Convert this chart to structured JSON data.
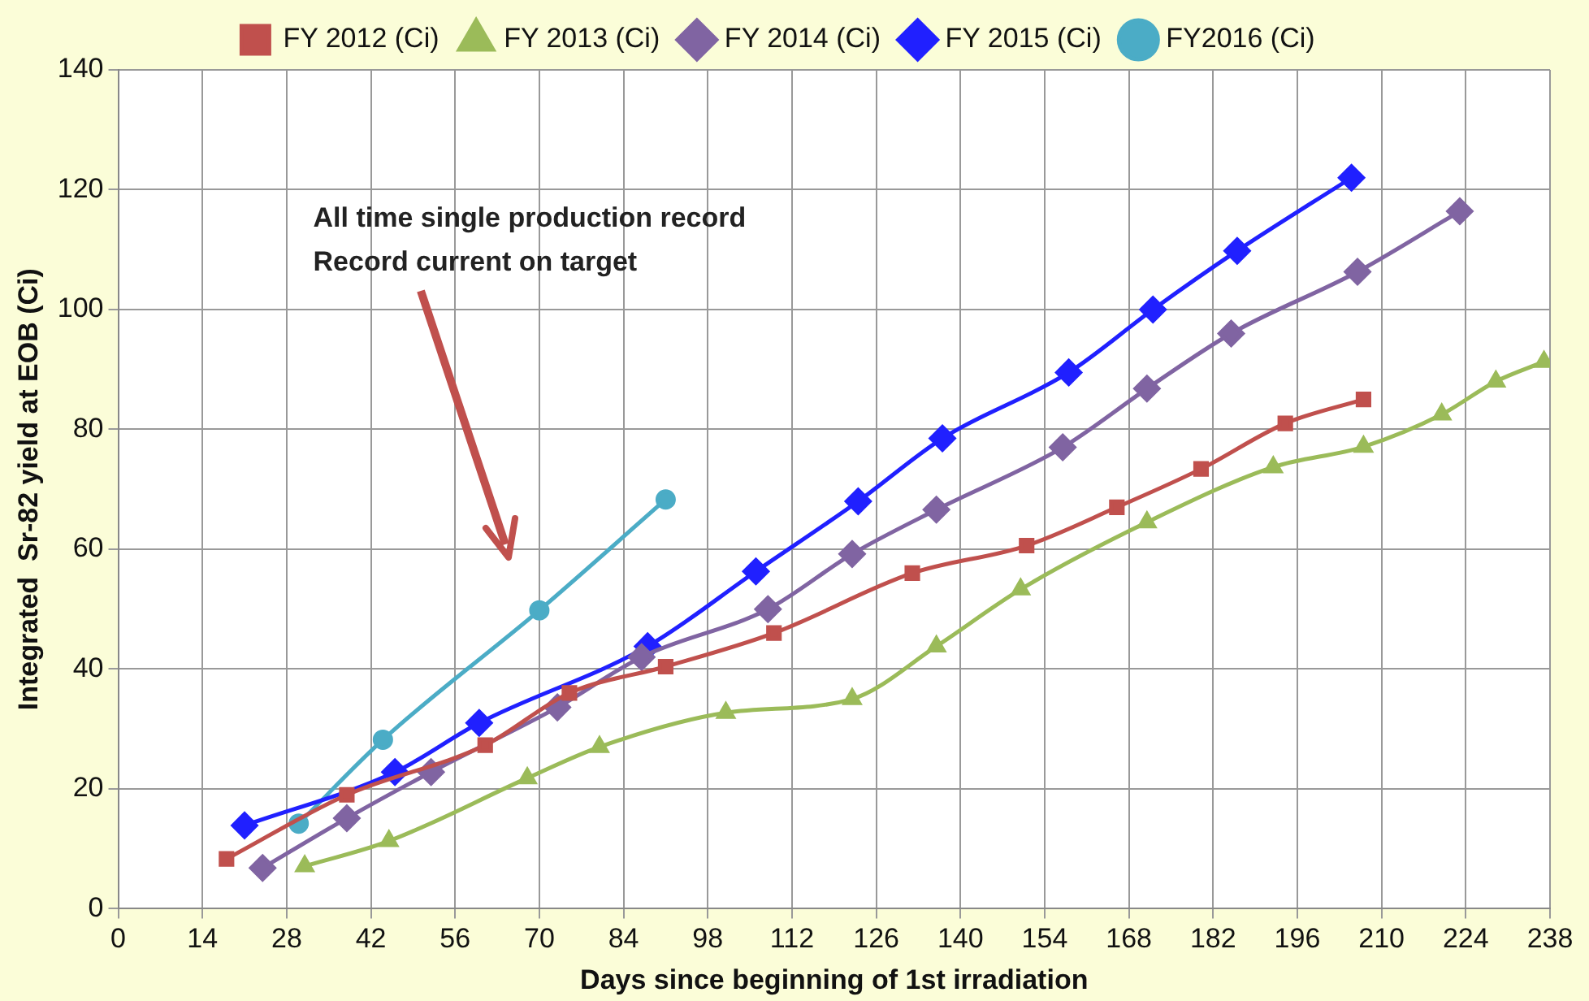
{
  "chart_data": {
    "type": "line",
    "xlabel": "Days since beginning of 1st irradiation",
    "ylabel": "Integrated  Sr-82 yield at EOB (Ci)",
    "xlim": [
      0,
      238
    ],
    "xticks": [
      0,
      14,
      28,
      42,
      56,
      70,
      84,
      98,
      112,
      126,
      140,
      154,
      168,
      182,
      196,
      210,
      224,
      238
    ],
    "ylim": [
      0,
      140
    ],
    "yticks": [
      0,
      20,
      40,
      60,
      80,
      100,
      120,
      140
    ],
    "grid": true,
    "legend": "top",
    "annotations": [
      "All time single production record\nRecord current on target"
    ],
    "series": [
      {
        "name": "FY 2012 (Ci)",
        "color": "#c0504d",
        "marker": "square",
        "x": [
          18,
          38,
          61,
          75,
          91,
          109,
          132,
          151,
          166,
          180,
          194,
          207
        ],
        "values": [
          8.3,
          19,
          27.3,
          36,
          40.4,
          46,
          56,
          60.6,
          67,
          73.4,
          81,
          85
        ]
      },
      {
        "name": "FY 2013 (Ci)",
        "color": "#9bbb59",
        "marker": "triangle",
        "x": [
          31,
          45,
          68,
          80,
          101,
          122,
          136,
          150,
          171,
          192,
          207,
          220,
          229,
          237
        ],
        "values": [
          7.1,
          11.3,
          21.8,
          27,
          32.7,
          35,
          43.8,
          53.3,
          64.5,
          73.7,
          77.1,
          82.5,
          88,
          91.3
        ]
      },
      {
        "name": "FY 2014 (Ci)",
        "color": "#8064a2",
        "marker": "diamond",
        "x": [
          24,
          38,
          52,
          73,
          87,
          108,
          122,
          136,
          157,
          171,
          185,
          206,
          223
        ],
        "values": [
          6.8,
          15.1,
          22.8,
          33.6,
          42,
          50,
          59.2,
          66.6,
          77,
          86.8,
          96,
          106.3,
          116.4
        ]
      },
      {
        "name": "FY 2015 (Ci)",
        "color": "#2020ff",
        "marker": "diamond",
        "x": [
          21,
          46,
          60,
          88,
          106,
          123,
          137,
          158,
          172,
          186,
          205
        ],
        "values": [
          13.9,
          22.8,
          31,
          43.8,
          56.3,
          68,
          78.5,
          89.5,
          100,
          109.8,
          122
        ]
      },
      {
        "name": "FY2016 (Ci)",
        "color": "#4bacc6",
        "marker": "circle",
        "x": [
          30,
          44,
          70,
          91
        ],
        "values": [
          14.2,
          28.2,
          49.8,
          68.3
        ]
      }
    ]
  }
}
